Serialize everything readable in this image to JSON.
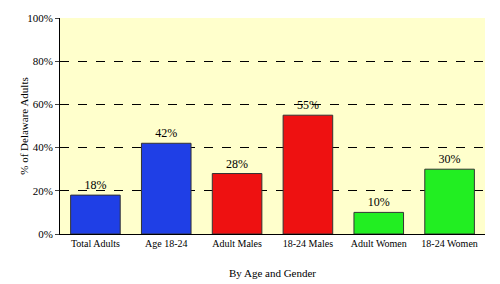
{
  "chart_data": {
    "type": "bar",
    "x_label": "By Age and Gender",
    "y_label": "% of Delaware Adults",
    "categories": [
      "Total Adults",
      "Age 18-24",
      "Adult Males",
      "18-24 Males",
      "Adult Women",
      "18-24 Women"
    ],
    "values": [
      18,
      42,
      28,
      55,
      10,
      30
    ],
    "value_labels": [
      "18%",
      "42%",
      "28%",
      "55%",
      "10%",
      "30%"
    ],
    "colors": [
      "#1f3fe6",
      "#1f3fe6",
      "#ee1111",
      "#ee1111",
      "#22ee22",
      "#22ee22"
    ],
    "ylim": [
      0,
      100
    ],
    "yticks": [
      {
        "value": 0,
        "label": "0%"
      },
      {
        "value": 20,
        "label": "20%"
      },
      {
        "value": 40,
        "label": "40%"
      },
      {
        "value": 60,
        "label": "60%"
      },
      {
        "value": 80,
        "label": "80%"
      },
      {
        "value": 100,
        "label": "100%"
      }
    ],
    "grid": true,
    "data_labels": true
  }
}
